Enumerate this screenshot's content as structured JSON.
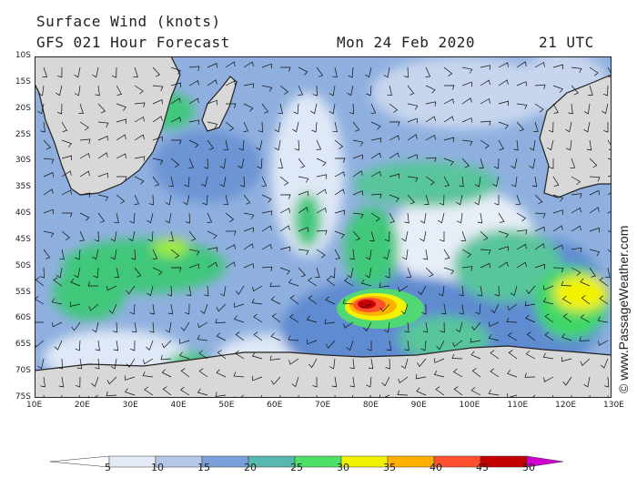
{
  "header": {
    "title": "Surface Wind (knots)",
    "forecast": "GFS 021 Hour Forecast",
    "date": "Mon 24 Feb 2020",
    "time": "21 UTC"
  },
  "credit": "© www.PassageWeather.com",
  "lat_labels": [
    "10S",
    "15S",
    "20S",
    "25S",
    "30S",
    "35S",
    "40S",
    "45S",
    "50S",
    "55S",
    "60S",
    "65S",
    "70S",
    "75S"
  ],
  "lon_labels": [
    "10E",
    "20E",
    "30E",
    "40E",
    "50E",
    "60E",
    "70E",
    "80E",
    "90E",
    "100E",
    "110E",
    "120E",
    "130E"
  ],
  "colorbar": {
    "labels": [
      "5",
      "10",
      "15",
      "20",
      "25",
      "30",
      "35",
      "40",
      "45",
      "50"
    ],
    "colors": [
      "#ffffff",
      "#e4ebf7",
      "#b5c8e7",
      "#7b9fd8",
      "#58b8b0",
      "#4fe06a",
      "#f2f200",
      "#ffb000",
      "#ff5030",
      "#c40000",
      "#d000d0"
    ]
  }
}
